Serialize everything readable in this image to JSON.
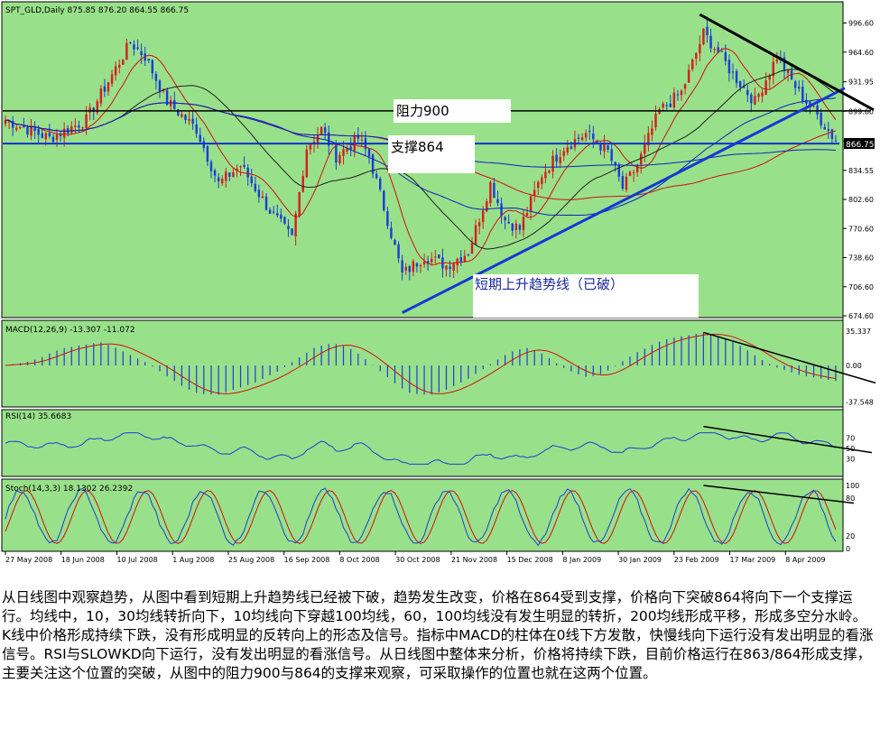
{
  "chart_data": {
    "type": "candlestick",
    "symbol_header": "SPT_GLD,Daily  875.85 876.20 864.55 866.75",
    "last_price_label": "866.75",
    "price_axis": {
      "ylim": [
        674.6,
        1012
      ],
      "ticks": [
        "996.60",
        "964.60",
        "931.95",
        "899.60",
        "866.75",
        "834.55",
        "802.60",
        "770.60",
        "738.60",
        "706.60",
        "674.60"
      ]
    },
    "x_tick_labels": [
      "27 May 2008",
      "18 Jun 2008",
      "10 Jul 2008",
      "1 Aug 2008",
      "25 Aug 2008",
      "16 Sep 2008",
      "8 Oct 2008",
      "30 Oct 2008",
      "21 Nov 2008",
      "15 Dec 2008",
      "8 Jan 2009",
      "30 Jan 2009",
      "23 Feb 2009",
      "17 Mar 2009",
      "8 Apr 2009"
    ],
    "price_series": [
      {
        "i": 0,
        "c": 890
      },
      {
        "i": 12,
        "c": 870
      },
      {
        "i": 22,
        "c": 890
      },
      {
        "i": 34,
        "c": 975
      },
      {
        "i": 38,
        "c": 960
      },
      {
        "i": 44,
        "c": 910
      },
      {
        "i": 52,
        "c": 880
      },
      {
        "i": 58,
        "c": 820
      },
      {
        "i": 64,
        "c": 840
      },
      {
        "i": 72,
        "c": 790
      },
      {
        "i": 78,
        "c": 760
      },
      {
        "i": 82,
        "c": 860
      },
      {
        "i": 86,
        "c": 880
      },
      {
        "i": 90,
        "c": 850
      },
      {
        "i": 96,
        "c": 870
      },
      {
        "i": 99,
        "c": 850
      },
      {
        "i": 104,
        "c": 780
      },
      {
        "i": 108,
        "c": 720
      },
      {
        "i": 114,
        "c": 740
      },
      {
        "i": 120,
        "c": 730
      },
      {
        "i": 126,
        "c": 745
      },
      {
        "i": 132,
        "c": 820
      },
      {
        "i": 136,
        "c": 780
      },
      {
        "i": 140,
        "c": 770
      },
      {
        "i": 146,
        "c": 830
      },
      {
        "i": 152,
        "c": 860
      },
      {
        "i": 158,
        "c": 875
      },
      {
        "i": 164,
        "c": 855
      },
      {
        "i": 168,
        "c": 815
      },
      {
        "i": 172,
        "c": 840
      },
      {
        "i": 178,
        "c": 900
      },
      {
        "i": 184,
        "c": 920
      },
      {
        "i": 190,
        "c": 985
      },
      {
        "i": 194,
        "c": 965
      },
      {
        "i": 198,
        "c": 940
      },
      {
        "i": 204,
        "c": 910
      },
      {
        "i": 210,
        "c": 960
      },
      {
        "i": 216,
        "c": 920
      },
      {
        "i": 222,
        "c": 890
      },
      {
        "i": 226,
        "c": 866.75
      }
    ],
    "horizontal_lines": [
      {
        "label": "阻力900",
        "value": 900
      },
      {
        "label": "支撑864",
        "value": 864
      }
    ],
    "trend_line_label": "短期上升趋势线（已破）",
    "macd": {
      "header": "MACD(12,26,9) -13.307 -11.072",
      "ticks": [
        "35.337",
        "0.00",
        "-37.548"
      ],
      "ylim": [
        -40,
        40
      ],
      "histogram": [
        0,
        2,
        4,
        8,
        14,
        18,
        20,
        22,
        24,
        20,
        14,
        8,
        2,
        -6,
        -14,
        -22,
        -28,
        -30,
        -30,
        -26,
        -22,
        -18,
        -12,
        -6,
        2,
        10,
        18,
        22,
        22,
        18,
        10,
        0,
        -10,
        -20,
        -28,
        -30,
        -30,
        -26,
        -20,
        -14,
        -6,
        2,
        10,
        16,
        18,
        14,
        6,
        -2,
        -8,
        -12,
        -10,
        -4,
        4,
        12,
        18,
        24,
        28,
        30,
        32,
        34,
        30,
        26,
        20,
        12,
        4,
        -2,
        -6,
        -10,
        -12,
        -14,
        -16
      ]
    },
    "rsi": {
      "header": "RSI(14) 35.6683",
      "ticks": [
        "70",
        "50",
        "30"
      ],
      "ylim": [
        0,
        100
      ]
    },
    "stoch": {
      "header": "Stoch(14,3,3) 18.1302 26.2392",
      "ticks": [
        "100",
        "80",
        "20",
        "0"
      ],
      "ylim": [
        0,
        100
      ]
    }
  },
  "analysis_text": "从日线图中观察趋势，从图中看到短期上升趋势线已经被下破，趋势发生改变，价格在864受到支撑，价格向下突破864将向下一个支撑运行。均线中，10，30均线转折向下，10均线向下穿越100均线，60，100均线没有发生明显的转折，200均线形成平移，形成多空分水岭。K线中价格形成持续下跌，没有形成明显的反转向上的形态及信号。指标中MACD的柱体在0线下方发散，快慢线向下运行没有发出明显的看涨信号。RSI与SLOWKD向下运行，没有发出明显的看涨信号。从日线图中整体来分析，价格将持续下跌，目前价格运行在863/864形成支撑，主要关注这个位置的突破，从图中的阻力900与864的支撑来观察，可采取操作的位置也就在这两个位置。",
  "colors": {
    "panel_bg": "#99e08a",
    "bull": "#d22020",
    "bear": "#1a3fd6",
    "ma_fast": "#d01010",
    "ma_slow": "#202020",
    "ma_blue": "#1020c0",
    "trend": "#1538d6",
    "support": "#1030d0"
  }
}
